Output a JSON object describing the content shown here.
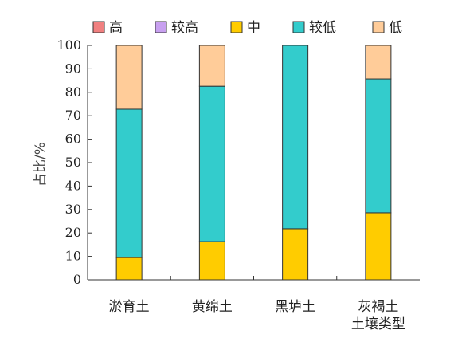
{
  "chart_data": {
    "type": "bar",
    "stacked": true,
    "categories": [
      [
        "淤育土"
      ],
      [
        "黄绵土"
      ],
      [
        "黑垆土"
      ],
      [
        "灰褐土",
        "土壤类型"
      ]
    ],
    "series": [
      {
        "name": "高",
        "color": "#f08080",
        "values": [
          0,
          0,
          0,
          0
        ]
      },
      {
        "name": "较高",
        "color": "#c8a0f0",
        "values": [
          0,
          0,
          0,
          0
        ]
      },
      {
        "name": "中",
        "color": "#ffcc00",
        "values": [
          9.5,
          16.3,
          21.8,
          28.6
        ]
      },
      {
        "name": "较低",
        "color": "#33cccc",
        "values": [
          63.3,
          66.3,
          78.2,
          57.1
        ]
      },
      {
        "name": "低",
        "color": "#ffcc99",
        "values": [
          27.2,
          17.4,
          0,
          14.3
        ]
      }
    ],
    "ylabel": "占比/%",
    "ylim": [
      0,
      100
    ],
    "yticks": [
      "0",
      "10",
      "20",
      "30",
      "40",
      "50",
      "60",
      "70",
      "80",
      "90",
      "100"
    ],
    "legend_position": "top",
    "grid": false
  }
}
